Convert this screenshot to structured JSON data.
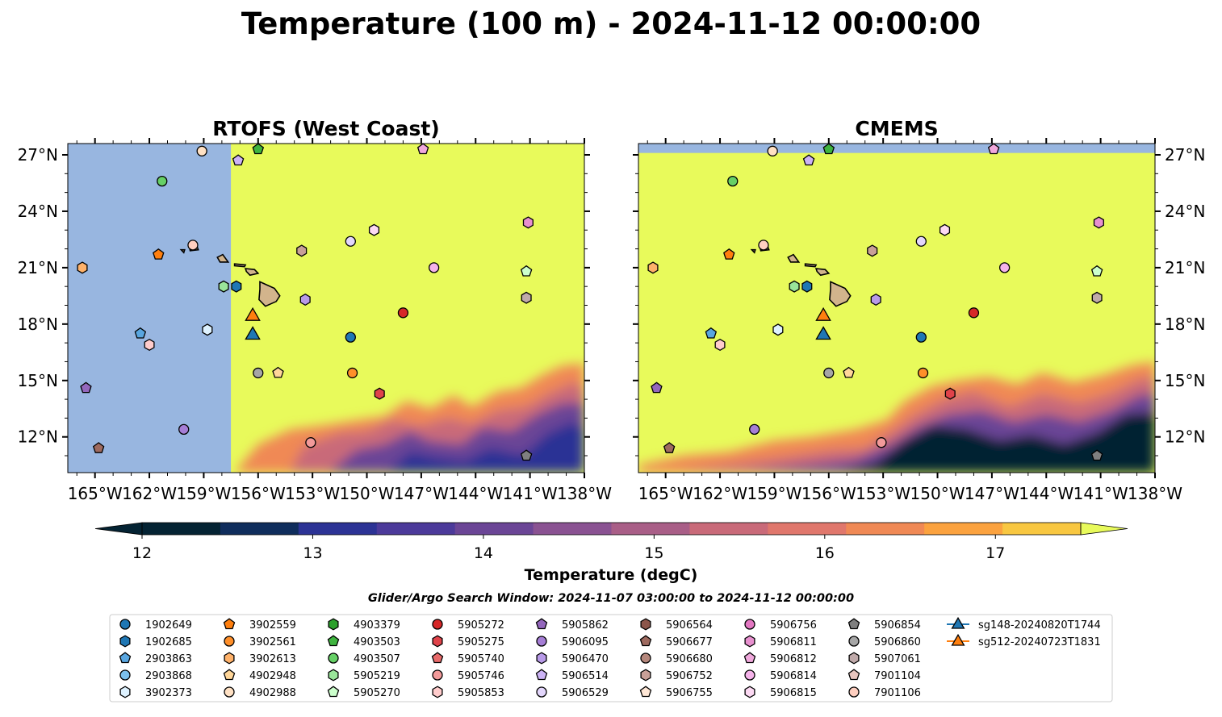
{
  "figure": {
    "title": "Temperature (100 m) - 2024-11-12 00:00:00",
    "search_window": "Glider/Argo Search Window: 2024-11-07 03:00:00 to 2024-11-12 00:00:00"
  },
  "chart_data": {
    "type": "heatmap",
    "colorbar": {
      "label": "Temperature (degC)",
      "range": [
        12,
        17.5
      ],
      "step": 0.5,
      "ticks": [
        12,
        13,
        14,
        15,
        16,
        17
      ],
      "extend": "both",
      "colors": [
        "#042333",
        "#0f2d5c",
        "#2c3395",
        "#4c3a9a",
        "#6b4596",
        "#8a5292",
        "#a95e87",
        "#c96a79",
        "#e0776c",
        "#f08955",
        "#fba23f",
        "#f8c741"
      ],
      "under_color": "#042333",
      "over_color": "#e8fa5b"
    },
    "panels": [
      {
        "title": "RTOFS (West Coast)",
        "lon_range": [
          -166.5,
          -138
        ],
        "lat_range": [
          10.1,
          27.6
        ],
        "x_ticks": [
          "165°W",
          "162°W",
          "159°W",
          "156°W",
          "153°W",
          "150°W",
          "147°W",
          "144°W",
          "141°W",
          "138°W"
        ],
        "y_ticks": [
          "27°N",
          "24°N",
          "21°N",
          "18°N",
          "15°N",
          "12°N"
        ],
        "y_tick_side": "left",
        "no_data_west_of_lon": -157.5,
        "no_data_north_of_lat": null,
        "no_data_color": "#98b6e0"
      },
      {
        "title": "CMEMS",
        "lon_range": [
          -166.5,
          -138
        ],
        "lat_range": [
          10.1,
          27.6
        ],
        "x_ticks": [
          "165°W",
          "162°W",
          "159°W",
          "156°W",
          "153°W",
          "150°W",
          "147°W",
          "144°W",
          "141°W",
          "138°W"
        ],
        "y_ticks": [
          "27°N",
          "24°N",
          "21°N",
          "18°N",
          "15°N",
          "12°N"
        ],
        "y_tick_side": "right",
        "no_data_west_of_lon": null,
        "no_data_north_of_lat": 27.1,
        "no_data_color": "#98b6e0"
      }
    ],
    "platforms": [
      {
        "id": "1902649",
        "marker": "o",
        "color": "#1f77b4",
        "lon": -150.9,
        "lat": 17.3
      },
      {
        "id": "1902685",
        "marker": "h",
        "color": "#1f77b4",
        "lon": -157.2,
        "lat": 20.0
      },
      {
        "id": "2903863",
        "marker": "p",
        "color": "#59a6e0",
        "lon": -162.5,
        "lat": 17.5
      },
      {
        "id": "2903868",
        "marker": "o",
        "color": "#7cc0ec",
        "lon": null,
        "lat": null
      },
      {
        "id": "3902373",
        "marker": "h",
        "color": "#def2ff",
        "lon": -158.8,
        "lat": 17.7
      },
      {
        "id": "3902559",
        "marker": "p",
        "color": "#ff7f0e",
        "lon": -161.5,
        "lat": 21.7
      },
      {
        "id": "3902561",
        "marker": "o",
        "color": "#ff8f2a",
        "lon": -150.8,
        "lat": 15.4
      },
      {
        "id": "3902613",
        "marker": "h",
        "color": "#ffb26a",
        "lon": -165.7,
        "lat": 21.0
      },
      {
        "id": "4902948",
        "marker": "p",
        "color": "#ffd699",
        "lon": -154.9,
        "lat": 15.4
      },
      {
        "id": "4902988",
        "marker": "o",
        "color": "#ffe1c4",
        "lon": -159.1,
        "lat": 27.2
      },
      {
        "id": "4903379",
        "marker": "h",
        "color": "#2ca02c",
        "lon": null,
        "lat": null
      },
      {
        "id": "4903503",
        "marker": "p",
        "color": "#3fb43f",
        "lon": -156.0,
        "lat": 27.3
      },
      {
        "id": "4903507",
        "marker": "o",
        "color": "#66d066",
        "lon": -161.3,
        "lat": 25.6
      },
      {
        "id": "5905219",
        "marker": "h",
        "color": "#9ae59a",
        "lon": -157.9,
        "lat": 20.0
      },
      {
        "id": "5905270",
        "marker": "p",
        "color": "#ccffcc",
        "lon": -141.2,
        "lat": 20.8
      },
      {
        "id": "5905272",
        "marker": "o",
        "color": "#d62728",
        "lon": -148.0,
        "lat": 18.6
      },
      {
        "id": "5905275",
        "marker": "h",
        "color": "#e0434a",
        "lon": -149.3,
        "lat": 14.3
      },
      {
        "id": "5905740",
        "marker": "p",
        "color": "#e86a6a",
        "lon": null,
        "lat": null
      },
      {
        "id": "5905746",
        "marker": "o",
        "color": "#f29a9a",
        "lon": -153.1,
        "lat": 11.7
      },
      {
        "id": "5905853",
        "marker": "h",
        "color": "#ffcccc",
        "lon": -162.0,
        "lat": 16.9
      },
      {
        "id": "5905862",
        "marker": "p",
        "color": "#9467bd",
        "lon": -165.5,
        "lat": 14.6
      },
      {
        "id": "5906095",
        "marker": "o",
        "color": "#a67ed6",
        "lon": -160.1,
        "lat": 12.4
      },
      {
        "id": "5906470",
        "marker": "h",
        "color": "#b89ae8",
        "lon": -153.4,
        "lat": 19.3
      },
      {
        "id": "5906514",
        "marker": "p",
        "color": "#ccb3f5",
        "lon": -157.1,
        "lat": 26.7
      },
      {
        "id": "5906529",
        "marker": "o",
        "color": "#e3d6fc",
        "lon": -150.9,
        "lat": 22.4
      },
      {
        "id": "5906564",
        "marker": "h",
        "color": "#8c564b",
        "lon": null,
        "lat": null
      },
      {
        "id": "5906677",
        "marker": "p",
        "color": "#9e6a5f",
        "lon": -164.8,
        "lat": 11.4
      },
      {
        "id": "5906680",
        "marker": "o",
        "color": "#b5877c",
        "lon": null,
        "lat": null
      },
      {
        "id": "5906752",
        "marker": "h",
        "color": "#c8a098",
        "lon": -153.6,
        "lat": 21.9
      },
      {
        "id": "5906755",
        "marker": "p",
        "color": "#ffe7d6",
        "lon": null,
        "lat": null
      },
      {
        "id": "5906756",
        "marker": "o",
        "color": "#e377c2",
        "lon": null,
        "lat": null
      },
      {
        "id": "5906811",
        "marker": "h",
        "color": "#e890cf",
        "lon": -141.1,
        "lat": 23.4
      },
      {
        "id": "5906812",
        "marker": "p",
        "color": "#f0a8dc",
        "lon": -146.9,
        "lat": 27.3
      },
      {
        "id": "5906814",
        "marker": "o",
        "color": "#f5b3ea",
        "lon": -146.3,
        "lat": 21.0
      },
      {
        "id": "5906815",
        "marker": "h",
        "color": "#fcd9f3",
        "lon": -149.6,
        "lat": 23.0
      },
      {
        "id": "5906854",
        "marker": "p",
        "color": "#7f7f7f",
        "lon": -141.2,
        "lat": 11.0
      },
      {
        "id": "5906860",
        "marker": "o",
        "color": "#a6a6a6",
        "lon": -156.0,
        "lat": 15.4
      },
      {
        "id": "5907061",
        "marker": "h",
        "color": "#c0aaaa",
        "lon": -141.2,
        "lat": 19.4
      },
      {
        "id": "7901104",
        "marker": "p",
        "color": "#e8c5be",
        "lon": null,
        "lat": null
      },
      {
        "id": "7901106",
        "marker": "o",
        "color": "#ffcfc0",
        "lon": -159.6,
        "lat": 22.2
      },
      {
        "id": "sg148-20240820T1744",
        "marker": "^",
        "color": "#1f77b4",
        "lon": -156.3,
        "lat": 17.5
      },
      {
        "id": "sg512-20240723T1831",
        "marker": "^",
        "color": "#ff7f0e",
        "lon": -156.3,
        "lat": 18.5
      }
    ]
  }
}
